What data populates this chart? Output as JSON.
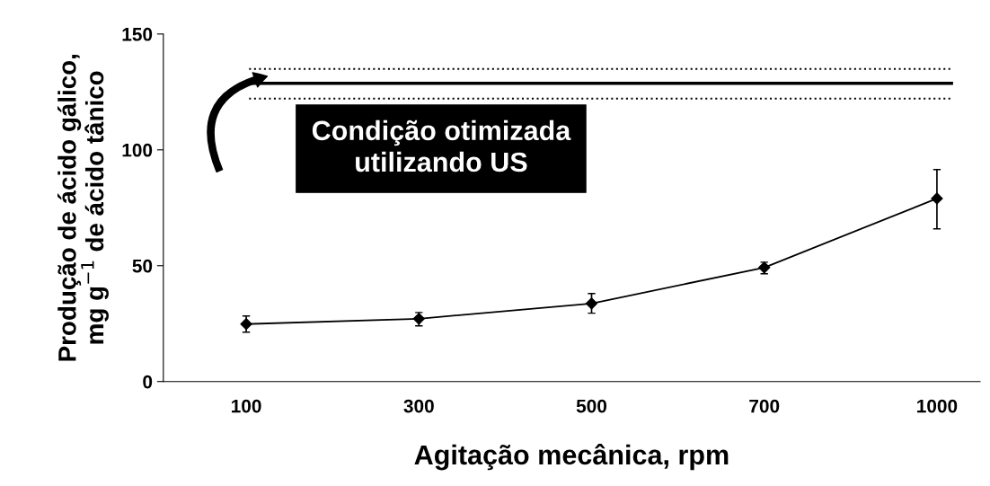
{
  "chart_data": {
    "type": "line",
    "xlabel": "Agitação mecânica, rpm",
    "ylabel": "Produção de ácido gálico,\nmg g$^{−1}$ de ácido tânico",
    "categories": [
      "100",
      "300",
      "500",
      "700",
      "1000"
    ],
    "series": [
      {
        "color": "#000000",
        "values": [
          24.8,
          27.1,
          33.7,
          49.2,
          79
        ],
        "errors": [
          [
            21.3,
            28.3
          ],
          [
            24,
            29.8
          ],
          [
            29.5,
            38
          ],
          [
            46.5,
            51.5
          ],
          [
            65.9,
            91.5
          ]
        ]
      }
    ],
    "ylim": [
      0,
      150
    ],
    "yticks": [
      0,
      50,
      100,
      150
    ],
    "ref_lines": [
      {
        "axis": "y",
        "value": 128.7,
        "color": "#000000",
        "line_style": "solid"
      },
      {
        "axis": "y",
        "value": 134.9,
        "color": "#000000",
        "line_style": "dotted"
      },
      {
        "axis": "y",
        "value": 122.1,
        "color": "#000000",
        "line_style": "dotted"
      }
    ],
    "annotations": [
      "Condição otimizada\nutilizando US"
    ],
    "marker": "diamond",
    "line_style": "solid",
    "grid": false,
    "legend": false
  }
}
